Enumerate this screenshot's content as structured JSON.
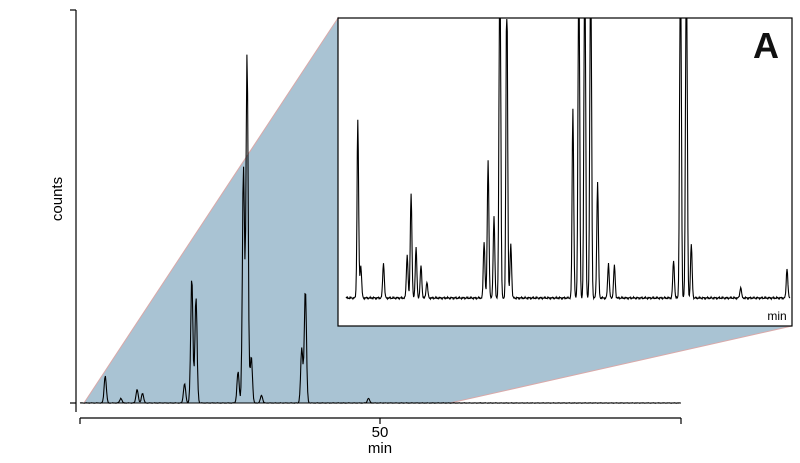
{
  "panel_label": "A",
  "colors": {
    "zoom_fill": "#a9c3d3",
    "zoom_edge": "#d9a9a9",
    "trace": "#000000",
    "background": "#ffffff"
  },
  "chart_data": [
    {
      "type": "line",
      "title": "",
      "xlabel": "min",
      "ylabel": "counts",
      "xlim": [
        0,
        100
      ],
      "x_ticks": [
        0,
        50,
        100
      ],
      "x_tick_labels": [
        "",
        "50",
        ""
      ],
      "ylim": [
        0,
        1
      ],
      "grid": false,
      "peaks": [
        {
          "rt": 4.2,
          "height": 0.07
        },
        {
          "rt": 6.8,
          "height": 0.012
        },
        {
          "rt": 9.5,
          "height": 0.035
        },
        {
          "rt": 10.4,
          "height": 0.025
        },
        {
          "rt": 17.4,
          "height": 0.05
        },
        {
          "rt": 18.6,
          "height": 0.32
        },
        {
          "rt": 19.3,
          "height": 0.27
        },
        {
          "rt": 26.3,
          "height": 0.08
        },
        {
          "rt": 27.2,
          "height": 0.6
        },
        {
          "rt": 27.8,
          "height": 0.89
        },
        {
          "rt": 28.5,
          "height": 0.12
        },
        {
          "rt": 30.2,
          "height": 0.02
        },
        {
          "rt": 36.9,
          "height": 0.14
        },
        {
          "rt": 37.5,
          "height": 0.29
        },
        {
          "rt": 48.0,
          "height": 0.012
        }
      ]
    },
    {
      "type": "line",
      "title": "",
      "xlabel": "min",
      "ylabel": "",
      "xlim": [
        3,
        48
      ],
      "zoom_of_ylim": [
        0,
        0.1
      ],
      "grid": false,
      "peaks": [
        {
          "rt": 4.2,
          "height": 0.66
        },
        {
          "rt": 4.5,
          "height": 0.12
        },
        {
          "rt": 6.8,
          "height": 0.13
        },
        {
          "rt": 9.2,
          "height": 0.16
        },
        {
          "rt": 9.6,
          "height": 0.39
        },
        {
          "rt": 10.1,
          "height": 0.19
        },
        {
          "rt": 10.6,
          "height": 0.12
        },
        {
          "rt": 11.2,
          "height": 0.06
        },
        {
          "rt": 17.0,
          "height": 0.21
        },
        {
          "rt": 17.4,
          "height": 0.51
        },
        {
          "rt": 18.0,
          "height": 0.3
        },
        {
          "rt": 18.6,
          "height": 1.5
        },
        {
          "rt": 19.3,
          "height": 1.2
        },
        {
          "rt": 19.7,
          "height": 0.2
        },
        {
          "rt": 26.0,
          "height": 0.7
        },
        {
          "rt": 26.6,
          "height": 1.5
        },
        {
          "rt": 27.2,
          "height": 1.5
        },
        {
          "rt": 27.8,
          "height": 1.5
        },
        {
          "rt": 28.5,
          "height": 0.43
        },
        {
          "rt": 29.6,
          "height": 0.13
        },
        {
          "rt": 30.2,
          "height": 0.12
        },
        {
          "rt": 36.2,
          "height": 0.14
        },
        {
          "rt": 36.9,
          "height": 1.5
        },
        {
          "rt": 37.5,
          "height": 1.5
        },
        {
          "rt": 38.0,
          "height": 0.2
        },
        {
          "rt": 43.0,
          "height": 0.04
        },
        {
          "rt": 47.7,
          "height": 0.11
        }
      ]
    }
  ]
}
